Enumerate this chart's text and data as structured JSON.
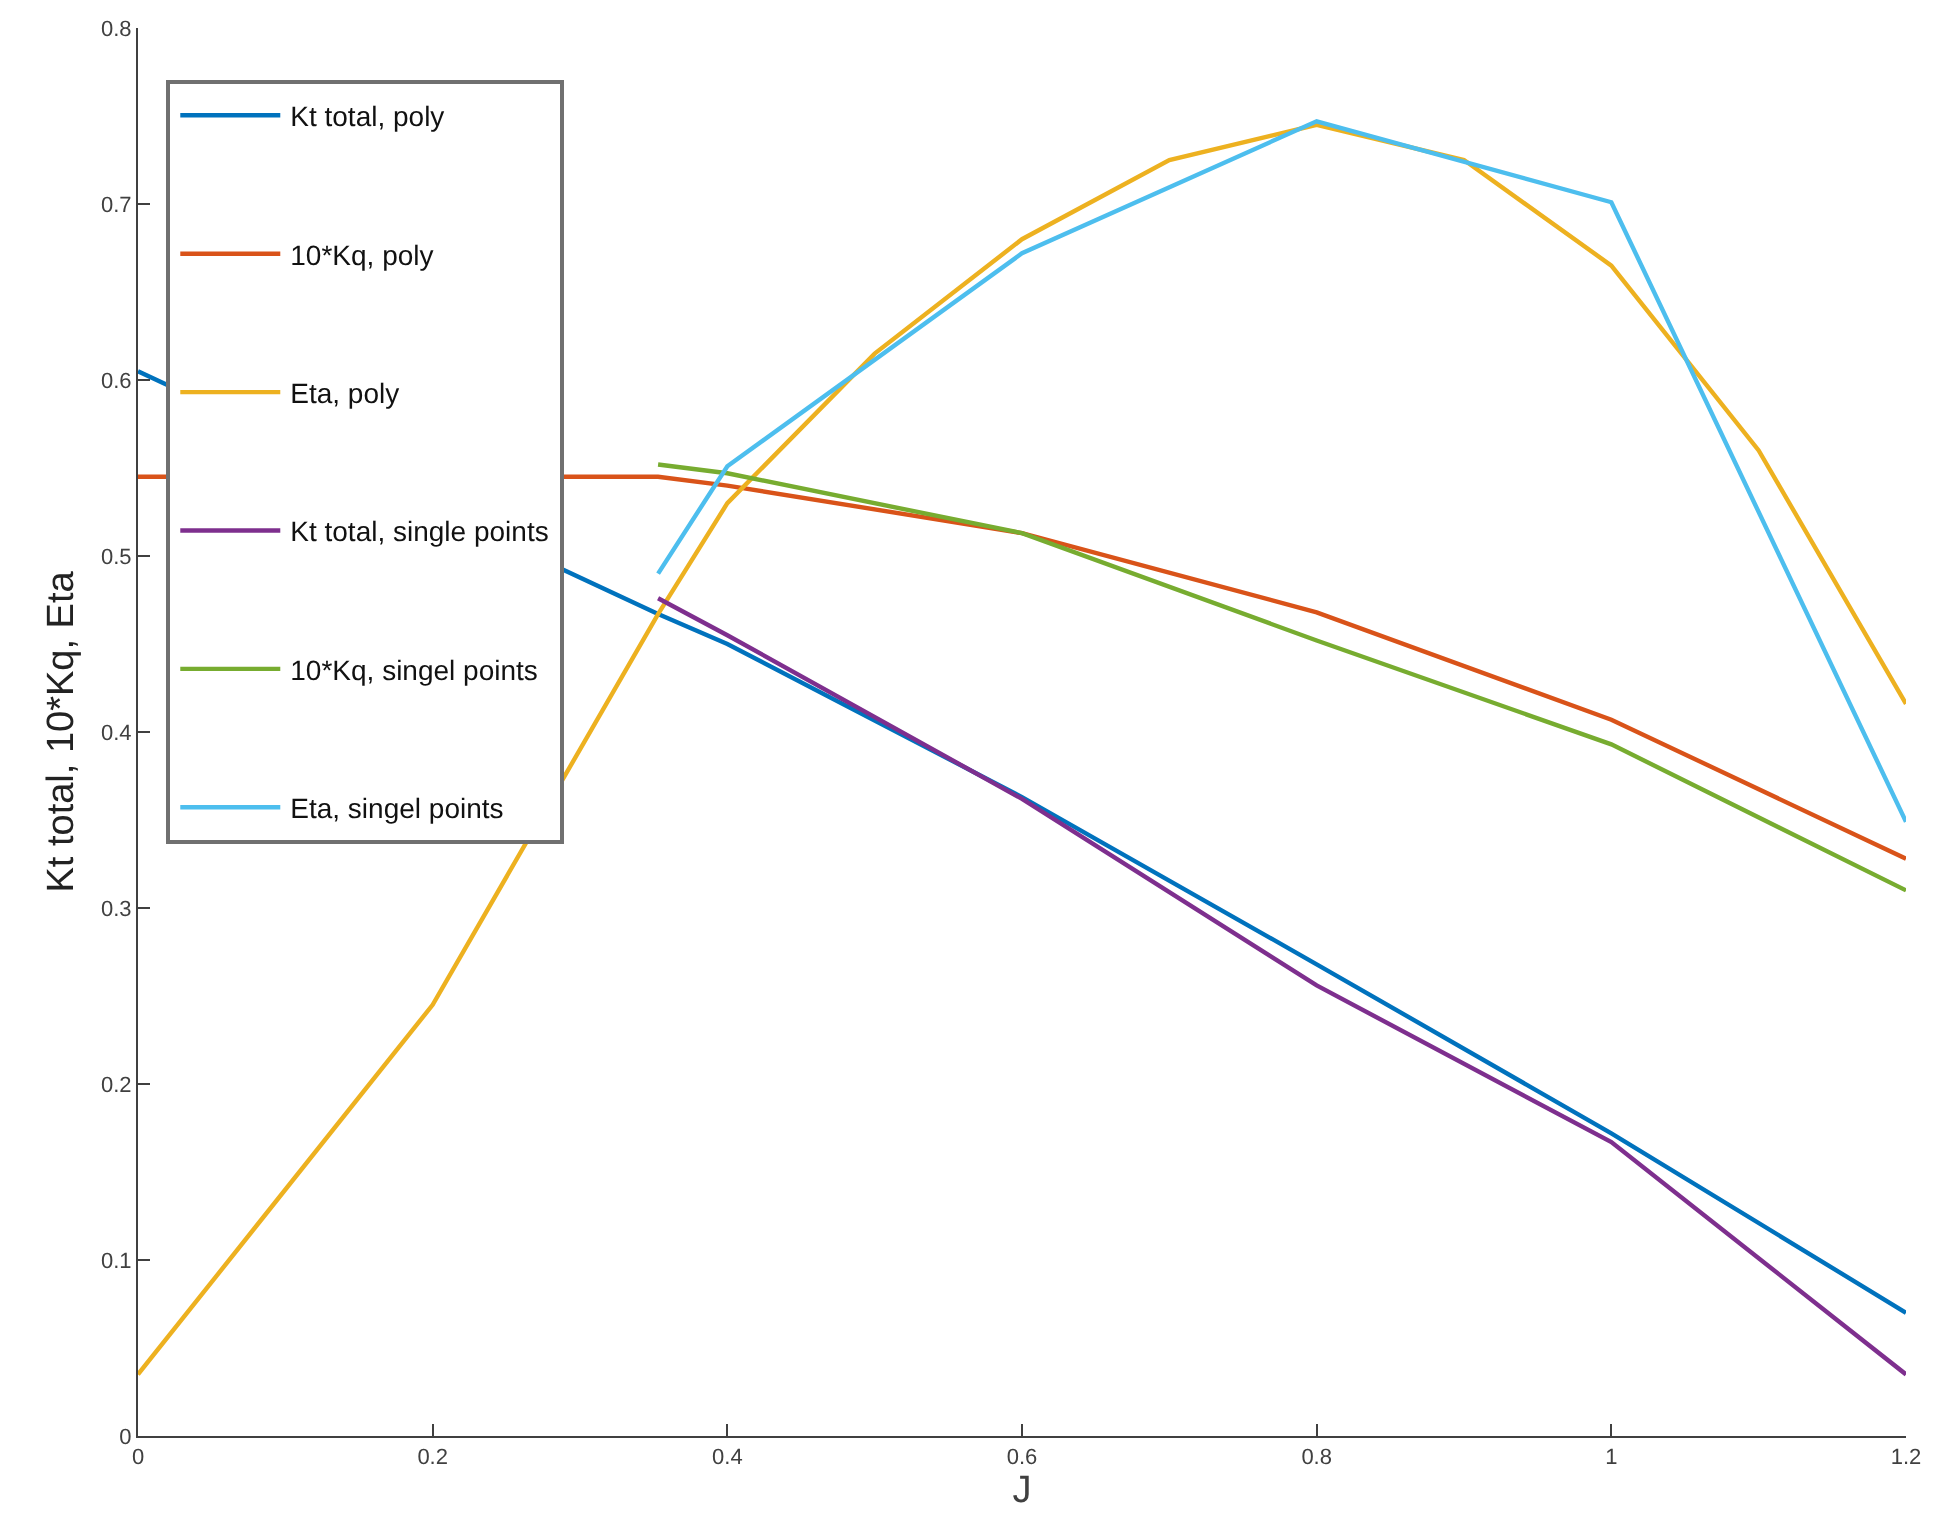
{
  "chart_data": {
    "type": "line",
    "xlabel": "J",
    "ylabel": "Kt total, 10*Kq, Eta",
    "xlim": [
      0,
      1.2
    ],
    "ylim": [
      0,
      0.8
    ],
    "xticks": [
      0,
      0.2,
      0.4,
      0.6,
      0.8,
      1,
      1.2
    ],
    "yticks": [
      0,
      0.1,
      0.2,
      0.3,
      0.4,
      0.5,
      0.6,
      0.7,
      0.8
    ],
    "grid": false,
    "legend": "top left",
    "marker": "none",
    "line_style": "solid",
    "series": [
      {
        "name": "Kt total, poly",
        "color": "#0072bd",
        "x": [
          0,
          0.353,
          0.4,
          0.6,
          0.8,
          1,
          1.2
        ],
        "values": [
          0.605,
          0.467,
          0.45,
          0.363,
          0.268,
          0.172,
          0.07
        ]
      },
      {
        "name": "10*Kq, poly",
        "color": "#d95319",
        "x": [
          0,
          0.353,
          0.4,
          0.6,
          0.8,
          1,
          1.2
        ],
        "values": [
          0.545,
          0.545,
          0.54,
          0.513,
          0.468,
          0.407,
          0.328
        ]
      },
      {
        "name": "Eta, poly",
        "color": "#edb120",
        "x": [
          0,
          0.2,
          0.353,
          0.4,
          0.5,
          0.6,
          0.7,
          0.8,
          0.9,
          1,
          1.1,
          1.2
        ],
        "values": [
          0.035,
          0.245,
          0.467,
          0.53,
          0.615,
          0.68,
          0.725,
          0.745,
          0.725,
          0.665,
          0.56,
          0.416
        ]
      },
      {
        "name": "Kt total, single points",
        "color": "#7e2f8e",
        "x": [
          0.353,
          0.4,
          0.6,
          0.8,
          1,
          1.2
        ],
        "values": [
          0.476,
          0.455,
          0.362,
          0.256,
          0.167,
          0.035
        ]
      },
      {
        "name": "10*Kq, singel points",
        "color": "#77ac30",
        "x": [
          0.353,
          0.4,
          0.6,
          0.8,
          1,
          1.2
        ],
        "values": [
          0.552,
          0.547,
          0.513,
          0.452,
          0.393,
          0.31
        ]
      },
      {
        "name": "Eta, singel points",
        "color": "#4dbeee",
        "x": [
          0.353,
          0.4,
          0.6,
          0.8,
          1,
          1.2
        ],
        "values": [
          0.49,
          0.551,
          0.672,
          0.747,
          0.701,
          0.349
        ]
      }
    ]
  }
}
